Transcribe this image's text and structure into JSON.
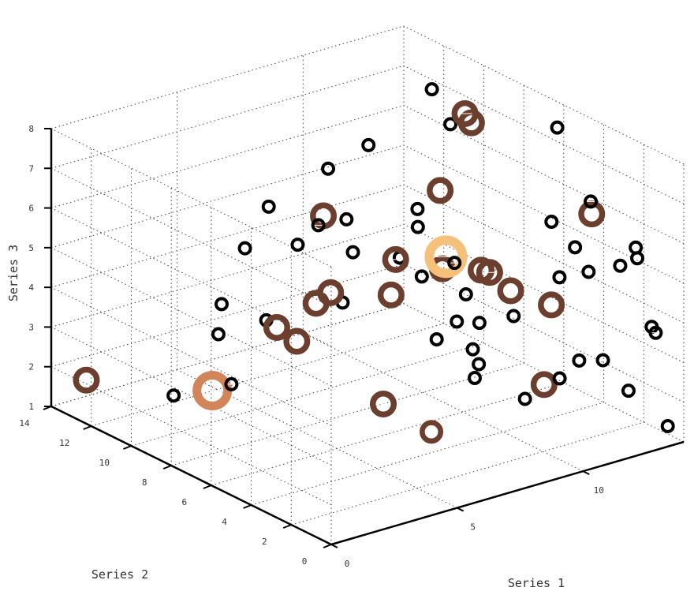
{
  "chart_data": {
    "type": "scatter3d",
    "title": "",
    "xlabel": "Series 1",
    "ylabel": "Series 2",
    "zlabel": "Series 3",
    "xlim": [
      0,
      14
    ],
    "ylim": [
      0,
      14
    ],
    "zlim": [
      1,
      8
    ],
    "xticks": [
      "0",
      "5",
      "10"
    ],
    "yticks": [
      "0",
      "2",
      "4",
      "6",
      "8",
      "10",
      "12",
      "14"
    ],
    "zticks": [
      "1",
      "2",
      "3",
      "4",
      "5",
      "6",
      "7",
      "8"
    ],
    "grid": true,
    "legend": "none",
    "marker": "ring",
    "points": [
      {
        "x": 0.6,
        "y": 13.0,
        "z": 1.8,
        "size": 34,
        "color": "#6b3e2e"
      },
      {
        "x": 2.0,
        "y": 10.4,
        "z": 1.8,
        "size": 18,
        "color": "#000000"
      },
      {
        "x": 6.6,
        "y": 3.3,
        "z": 1.8,
        "size": 30,
        "color": "#6b3e2e"
      },
      {
        "x": 13.5,
        "y": 4.6,
        "z": 2.0,
        "size": 18,
        "color": "#000000"
      },
      {
        "x": 0.2,
        "y": 6.2,
        "z": 3.3,
        "size": 50,
        "color": "#d2855a"
      },
      {
        "x": 0.8,
        "y": 6.0,
        "z": 3.4,
        "size": 18,
        "color": "#000000"
      },
      {
        "x": 1.0,
        "y": 6.9,
        "z": 4.4,
        "size": 18,
        "color": "#000000"
      },
      {
        "x": 2.0,
        "y": 8.0,
        "z": 4.7,
        "size": 18,
        "color": "#000000"
      },
      {
        "x": 2.9,
        "y": 6.9,
        "z": 4.4,
        "size": 18,
        "color": "#000000"
      },
      {
        "x": 3.0,
        "y": 5.5,
        "z": 4.2,
        "size": 34,
        "color": "#6b3e2e"
      },
      {
        "x": 3.0,
        "y": 6.5,
        "z": 4.3,
        "size": 34,
        "color": "#6b3e2e"
      },
      {
        "x": 4.9,
        "y": 5.6,
        "z": 4.8,
        "size": 18,
        "color": "#000000"
      },
      {
        "x": 4.4,
        "y": 6.3,
        "z": 4.7,
        "size": 34,
        "color": "#6b3e2e"
      },
      {
        "x": 4.9,
        "y": 6.2,
        "z": 4.9,
        "size": 34,
        "color": "#6b3e2e"
      },
      {
        "x": 3.8,
        "y": 9.1,
        "z": 5.5,
        "size": 18,
        "color": "#000000"
      },
      {
        "x": 5.1,
        "y": 8.1,
        "z": 5.6,
        "size": 18,
        "color": "#000000"
      },
      {
        "x": 6.2,
        "y": 8.2,
        "z": 6.1,
        "size": 34,
        "color": "#6b3e2e"
      },
      {
        "x": 5.3,
        "y": 9.8,
        "z": 6.1,
        "size": 18,
        "color": "#000000"
      },
      {
        "x": 5.8,
        "y": 4.7,
        "z": 2.3,
        "size": 34,
        "color": "#6b3e2e"
      },
      {
        "x": 6.5,
        "y": 7.1,
        "z": 5.4,
        "size": 18,
        "color": "#000000"
      },
      {
        "x": 6.0,
        "y": 8.2,
        "z": 5.9,
        "size": 18,
        "color": "#000000"
      },
      {
        "x": 6.8,
        "y": 7.8,
        "z": 6.0,
        "size": 18,
        "color": "#000000"
      },
      {
        "x": 7.5,
        "y": 9.6,
        "z": 6.7,
        "size": 18,
        "color": "#000000"
      },
      {
        "x": 8.0,
        "y": 4.8,
        "z": 3.5,
        "size": 18,
        "color": "#000000"
      },
      {
        "x": 8.8,
        "y": 3.7,
        "z": 3.0,
        "size": 18,
        "color": "#000000"
      },
      {
        "x": 8.4,
        "y": 3.4,
        "z": 2.8,
        "size": 18,
        "color": "#000000"
      },
      {
        "x": 8.6,
        "y": 6.3,
        "z": 4.6,
        "size": 18,
        "color": "#000000"
      },
      {
        "x": 8.8,
        "y": 4.8,
        "z": 3.8,
        "size": 18,
        "color": "#000000"
      },
      {
        "x": 8.2,
        "y": 6.9,
        "z": 5.0,
        "size": 18,
        "color": "#000000"
      },
      {
        "x": 7.3,
        "y": 6.2,
        "z": 4.4,
        "size": 34,
        "color": "#6b3e2e"
      },
      {
        "x": 7.8,
        "y": 6.6,
        "z": 5.1,
        "size": 34,
        "color": "#6b3e2e"
      },
      {
        "x": 9.0,
        "y": 7.0,
        "z": 5.6,
        "size": 18,
        "color": "#000000"
      },
      {
        "x": 9.1,
        "y": 5.9,
        "z": 4.8,
        "size": 34,
        "color": "#6b3e2e"
      },
      {
        "x": 9.4,
        "y": 5.1,
        "z": 4.3,
        "size": 18,
        "color": "#000000"
      },
      {
        "x": 8.8,
        "y": 4.0,
        "z": 3.3,
        "size": 18,
        "color": "#000000"
      },
      {
        "x": 9.4,
        "y": 6.1,
        "z": 5.0,
        "size": 54,
        "color": "#f5c07a"
      },
      {
        "x": 9.5,
        "y": 5.8,
        "z": 4.9,
        "size": 18,
        "color": "#000000"
      },
      {
        "x": 9.3,
        "y": 4.3,
        "z": 3.8,
        "size": 18,
        "color": "#000000"
      },
      {
        "x": 9.7,
        "y": 7.9,
        "z": 5.7,
        "size": 18,
        "color": "#000000"
      },
      {
        "x": 9.5,
        "y": 10.1,
        "z": 6.8,
        "size": 18,
        "color": "#000000"
      },
      {
        "x": 9.6,
        "y": 2.4,
        "z": 2.3,
        "size": 18,
        "color": "#000000"
      },
      {
        "x": 10.6,
        "y": 7.9,
        "z": 6.0,
        "size": 34,
        "color": "#6b3e2e"
      },
      {
        "x": 10.4,
        "y": 5.6,
        "z": 4.6,
        "size": 34,
        "color": "#6b3e2e"
      },
      {
        "x": 10.5,
        "y": 4.1,
        "z": 3.8,
        "size": 18,
        "color": "#000000"
      },
      {
        "x": 10.5,
        "y": 5.3,
        "z": 4.6,
        "size": 34,
        "color": "#6b3e2e"
      },
      {
        "x": 10.7,
        "y": 4.5,
        "z": 4.3,
        "size": 34,
        "color": "#6b3e2e"
      },
      {
        "x": 10.2,
        "y": 2.2,
        "z": 2.6,
        "size": 34,
        "color": "#6b3e2e"
      },
      {
        "x": 10.5,
        "y": 1.8,
        "z": 2.8,
        "size": 18,
        "color": "#000000"
      },
      {
        "x": 11.6,
        "y": 3.6,
        "z": 4.0,
        "size": 34,
        "color": "#6b3e2e"
      },
      {
        "x": 11.7,
        "y": 9.7,
        "z": 7.9,
        "size": 18,
        "color": "#000000"
      },
      {
        "x": 11.8,
        "y": 8.9,
        "z": 7.2,
        "size": 18,
        "color": "#000000"
      },
      {
        "x": 12.4,
        "y": 8.6,
        "z": 7.2,
        "size": 34,
        "color": "#6b3e2e"
      },
      {
        "x": 12.3,
        "y": 8.8,
        "z": 7.4,
        "size": 34,
        "color": "#6b3e2e"
      },
      {
        "x": 12.4,
        "y": 4.2,
        "z": 4.4,
        "size": 18,
        "color": "#000000"
      },
      {
        "x": 12.3,
        "y": 1.9,
        "z": 2.9,
        "size": 18,
        "color": "#000000"
      },
      {
        "x": 12.6,
        "y": 1.0,
        "z": 2.3,
        "size": 18,
        "color": "#000000"
      },
      {
        "x": 12.4,
        "y": 4.6,
        "z": 5.7,
        "size": 18,
        "color": "#000000"
      },
      {
        "x": 12.7,
        "y": 3.8,
        "z": 5.2,
        "size": 18,
        "color": "#000000"
      },
      {
        "x": 13.0,
        "y": 3.5,
        "z": 4.6,
        "size": 18,
        "color": "#000000"
      },
      {
        "x": 13.6,
        "y": 4.1,
        "z": 5.8,
        "size": 34,
        "color": "#6b3e2e"
      },
      {
        "x": 13.7,
        "y": 2.8,
        "z": 4.8,
        "size": 18,
        "color": "#000000"
      },
      {
        "x": 13.6,
        "y": 1.1,
        "z": 3.7,
        "size": 18,
        "color": "#000000"
      },
      {
        "x": 14.0,
        "y": 0.8,
        "z": 1.2,
        "size": 18,
        "color": "#000000"
      },
      {
        "x": 13.8,
        "y": 4.4,
        "z": 6.0,
        "size": 18,
        "color": "#000000"
      },
      {
        "x": 13.9,
        "y": 6.2,
        "z": 7.4,
        "size": 18,
        "color": "#000000"
      },
      {
        "x": 13.6,
        "y": 0.9,
        "z": 3.6,
        "size": 18,
        "color": "#000000"
      },
      {
        "x": 13.9,
        "y": 2.2,
        "z": 5.1,
        "size": 18,
        "color": "#000000"
      },
      {
        "x": 14.0,
        "y": 2.4,
        "z": 5.3,
        "size": 18,
        "color": "#000000"
      }
    ]
  }
}
